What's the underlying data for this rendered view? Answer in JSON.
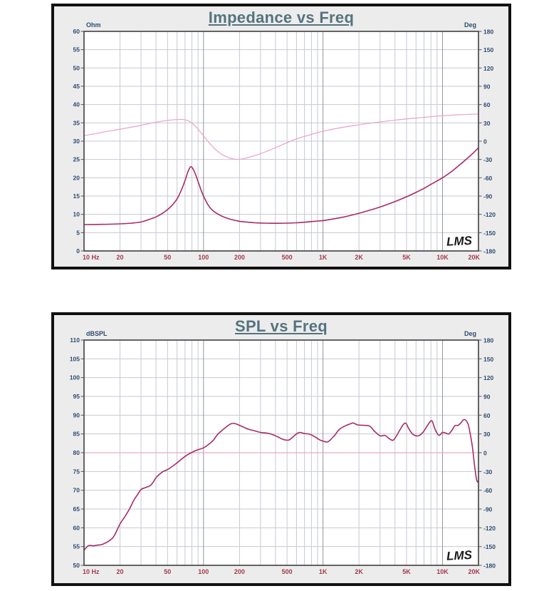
{
  "colors": {
    "title": "#54737f",
    "axis_label_blue": "#2d4b70",
    "freq_label_red": "#a23b4c",
    "curve_dark_magenta": "#a62c68",
    "curve_light_pink": "#e9a9ca",
    "grid_minor": "#c6c9d2",
    "grid_major": "#8f949e",
    "plot_border": "#3f3f3f",
    "panel_bg": "#ececec",
    "plot_bg": "#ffffff",
    "watermark": "#1a1a1a"
  },
  "chart_data": [
    {
      "type": "line",
      "title": "Impedance vs Freq",
      "watermark": "LMS",
      "x_axis": {
        "scale": "log",
        "min": 10,
        "max": 20000,
        "ticks": [
          {
            "f": 10,
            "label": "10 Hz"
          },
          {
            "f": 20,
            "label": "20"
          },
          {
            "f": 50,
            "label": "50"
          },
          {
            "f": 100,
            "label": "100"
          },
          {
            "f": 200,
            "label": "200"
          },
          {
            "f": 500,
            "label": "500"
          },
          {
            "f": 1000,
            "label": "1K"
          },
          {
            "f": 2000,
            "label": "2K"
          },
          {
            "f": 5000,
            "label": "5K"
          },
          {
            "f": 10000,
            "label": "10K"
          },
          {
            "f": 20000,
            "label": "20K"
          }
        ]
      },
      "left_axis": {
        "unit": "Ohm",
        "min": 0,
        "max": 60,
        "step": 5
      },
      "right_axis": {
        "unit": "Deg",
        "min": -180,
        "max": 180,
        "step": 30
      },
      "series": [
        {
          "name": "phase",
          "axis": "right",
          "color": "#e9a9ca",
          "width": 1.3,
          "points": [
            [
              10,
              9
            ],
            [
              13,
              13
            ],
            [
              16,
              16.5
            ],
            [
              20,
              19.5
            ],
            [
              25,
              23
            ],
            [
              30,
              26
            ],
            [
              35,
              28.8
            ],
            [
              40,
              31
            ],
            [
              45,
              32.8
            ],
            [
              50,
              34
            ],
            [
              55,
              35
            ],
            [
              60,
              35.5
            ],
            [
              65,
              35.7
            ],
            [
              70,
              35
            ],
            [
              75,
              33.2
            ],
            [
              80,
              29.5
            ],
            [
              85,
              25
            ],
            [
              90,
              19.5
            ],
            [
              95,
              14
            ],
            [
              100,
              9
            ],
            [
              105,
              3.5
            ],
            [
              110,
              -1.5
            ],
            [
              118,
              -8
            ],
            [
              125,
              -13
            ],
            [
              135,
              -18.5
            ],
            [
              145,
              -22.5
            ],
            [
              155,
              -25.5
            ],
            [
              165,
              -27.5
            ],
            [
              180,
              -29.3
            ],
            [
              200,
              -29.8
            ],
            [
              220,
              -28.5
            ],
            [
              250,
              -25.5
            ],
            [
              280,
              -22.5
            ],
            [
              320,
              -18.5
            ],
            [
              370,
              -13.5
            ],
            [
              420,
              -9
            ],
            [
              480,
              -4
            ],
            [
              550,
              1
            ],
            [
              650,
              6
            ],
            [
              750,
              9.5
            ],
            [
              900,
              14
            ],
            [
              1100,
              18
            ],
            [
              1400,
              22
            ],
            [
              1800,
              25.5
            ],
            [
              2300,
              28.5
            ],
            [
              3000,
              31.5
            ],
            [
              4000,
              34.5
            ],
            [
              5000,
              36.5
            ],
            [
              6500,
              38.5
            ],
            [
              8000,
              40.2
            ],
            [
              10000,
              41.7
            ],
            [
              13000,
              43
            ],
            [
              16000,
              43.8
            ],
            [
              20000,
              44.5
            ]
          ]
        },
        {
          "name": "impedance",
          "axis": "left",
          "color": "#a62c68",
          "width": 1.6,
          "points": [
            [
              10,
              7.2
            ],
            [
              13,
              7.25
            ],
            [
              16,
              7.3
            ],
            [
              20,
              7.4
            ],
            [
              25,
              7.6
            ],
            [
              30,
              7.9
            ],
            [
              35,
              8.6
            ],
            [
              40,
              9.3
            ],
            [
              45,
              10.2
            ],
            [
              50,
              11.3
            ],
            [
              55,
              12.6
            ],
            [
              60,
              14.2
            ],
            [
              65,
              16.5
            ],
            [
              70,
              19.2
            ],
            [
              74,
              21.6
            ],
            [
              78,
              23.0
            ],
            [
              82,
              22.3
            ],
            [
              86,
              20.8
            ],
            [
              90,
              19.0
            ],
            [
              95,
              16.8
            ],
            [
              100,
              15.0
            ],
            [
              110,
              12.4
            ],
            [
              120,
              11.0
            ],
            [
              135,
              9.9
            ],
            [
              150,
              9.2
            ],
            [
              170,
              8.6
            ],
            [
              200,
              8.1
            ],
            [
              230,
              7.9
            ],
            [
              270,
              7.7
            ],
            [
              320,
              7.6
            ],
            [
              400,
              7.55
            ],
            [
              500,
              7.6
            ],
            [
              600,
              7.7
            ],
            [
              700,
              7.85
            ],
            [
              850,
              8.1
            ],
            [
              1000,
              8.3
            ],
            [
              1200,
              8.7
            ],
            [
              1500,
              9.3
            ],
            [
              2000,
              10.3
            ],
            [
              2500,
              11.2
            ],
            [
              3000,
              12.0
            ],
            [
              4000,
              13.5
            ],
            [
              5000,
              14.8
            ],
            [
              6000,
              16.0
            ],
            [
              7000,
              17.1
            ],
            [
              8000,
              18.2
            ],
            [
              10000,
              20.0
            ],
            [
              12000,
              21.8
            ],
            [
              14000,
              23.6
            ],
            [
              16000,
              25.2
            ],
            [
              18000,
              26.7
            ],
            [
              20000,
              28.2
            ]
          ]
        }
      ]
    },
    {
      "type": "line",
      "title": "SPL vs Freq",
      "watermark": "LMS",
      "x_axis": {
        "scale": "log",
        "min": 10,
        "max": 20000,
        "ticks": [
          {
            "f": 10,
            "label": "10 Hz"
          },
          {
            "f": 20,
            "label": "20"
          },
          {
            "f": 50,
            "label": "50"
          },
          {
            "f": 100,
            "label": "100"
          },
          {
            "f": 200,
            "label": "200"
          },
          {
            "f": 500,
            "label": "500"
          },
          {
            "f": 1000,
            "label": "1K"
          },
          {
            "f": 2000,
            "label": "2K"
          },
          {
            "f": 5000,
            "label": "5K"
          },
          {
            "f": 10000,
            "label": "10K"
          },
          {
            "f": 20000,
            "label": "20K"
          }
        ]
      },
      "left_axis": {
        "unit": "dBSPL",
        "min": 50,
        "max": 110,
        "step": 5
      },
      "right_axis": {
        "unit": "Deg",
        "min": -180,
        "max": 180,
        "step": 30
      },
      "series": [
        {
          "name": "phase",
          "axis": "right",
          "color": "#e9a9ca",
          "width": 1.3,
          "points": [
            [
              10,
              0
            ],
            [
              100,
              0
            ],
            [
              1000,
              0
            ],
            [
              10000,
              0
            ],
            [
              20000,
              0
            ]
          ]
        },
        {
          "name": "spl",
          "axis": "left",
          "color": "#a62c68",
          "width": 1.6,
          "points": [
            [
              10,
              54
            ],
            [
              10.5,
              54.8
            ],
            [
              11,
              55.3
            ],
            [
              12,
              55.2
            ],
            [
              13,
              55.4
            ],
            [
              14,
              55.5
            ],
            [
              15,
              55.9
            ],
            [
              16,
              56.4
            ],
            [
              17,
              57
            ],
            [
              18,
              58
            ],
            [
              20,
              61
            ],
            [
              22,
              63
            ],
            [
              24,
              65
            ],
            [
              26,
              67.2
            ],
            [
              28,
              68.8
            ],
            [
              30,
              70.2
            ],
            [
              32,
              70.6
            ],
            [
              34,
              70.9
            ],
            [
              36,
              71.3
            ],
            [
              38,
              72.2
            ],
            [
              40,
              73.3
            ],
            [
              43,
              74.3
            ],
            [
              46,
              75
            ],
            [
              50,
              75.5
            ],
            [
              55,
              76.4
            ],
            [
              60,
              77.3
            ],
            [
              65,
              78.2
            ],
            [
              70,
              79
            ],
            [
              75,
              79.6
            ],
            [
              80,
              80.1
            ],
            [
              85,
              80.5
            ],
            [
              90,
              80.8
            ],
            [
              100,
              81.3
            ],
            [
              110,
              82.2
            ],
            [
              120,
              83.2
            ],
            [
              130,
              84.7
            ],
            [
              140,
              85.7
            ],
            [
              150,
              86.5
            ],
            [
              160,
              87.2
            ],
            [
              170,
              87.7
            ],
            [
              180,
              87.8
            ],
            [
              190,
              87.6
            ],
            [
              200,
              87.3
            ],
            [
              220,
              86.7
            ],
            [
              240,
              86.2
            ],
            [
              270,
              85.8
            ],
            [
              300,
              85.4
            ],
            [
              340,
              85.2
            ],
            [
              380,
              84.8
            ],
            [
              420,
              84.2
            ],
            [
              450,
              83.7
            ],
            [
              480,
              83.4
            ],
            [
              520,
              83.4
            ],
            [
              560,
              84.2
            ],
            [
              600,
              85.0
            ],
            [
              640,
              85.4
            ],
            [
              700,
              85.1
            ],
            [
              780,
              84.9
            ],
            [
              860,
              84.2
            ],
            [
              940,
              83.4
            ],
            [
              1000,
              83.1
            ],
            [
              1100,
              82.9
            ],
            [
              1250,
              84.6
            ],
            [
              1350,
              86.0
            ],
            [
              1500,
              87.0
            ],
            [
              1700,
              87.7
            ],
            [
              1800,
              87.9
            ],
            [
              1950,
              87.4
            ],
            [
              2200,
              87.3
            ],
            [
              2450,
              87.1
            ],
            [
              2700,
              85.7
            ],
            [
              3000,
              84.5
            ],
            [
              3300,
              84.6
            ],
            [
              3600,
              83.7
            ],
            [
              3900,
              83.4
            ],
            [
              4300,
              85.5
            ],
            [
              4700,
              87.5
            ],
            [
              4950,
              87.8
            ],
            [
              5200,
              86.5
            ],
            [
              5600,
              85.0
            ],
            [
              6000,
              84.5
            ],
            [
              6400,
              84.6
            ],
            [
              6900,
              85.5
            ],
            [
              7400,
              87.0
            ],
            [
              7900,
              88.3
            ],
            [
              8200,
              88.4
            ],
            [
              8600,
              86.5
            ],
            [
              9000,
              85.2
            ],
            [
              9400,
              84.6
            ],
            [
              10000,
              85.4
            ],
            [
              10700,
              85.2
            ],
            [
              11300,
              85.0
            ],
            [
              12000,
              86.0
            ],
            [
              12700,
              87.2
            ],
            [
              13500,
              87.3
            ],
            [
              14300,
              88.0
            ],
            [
              15000,
              88.8
            ],
            [
              15700,
              88.6
            ],
            [
              16400,
              87.6
            ],
            [
              17100,
              84.8
            ],
            [
              17800,
              81.5
            ],
            [
              18400,
              77.5
            ],
            [
              19000,
              74
            ],
            [
              19500,
              72.3
            ],
            [
              20000,
              72.5
            ]
          ]
        }
      ]
    }
  ]
}
